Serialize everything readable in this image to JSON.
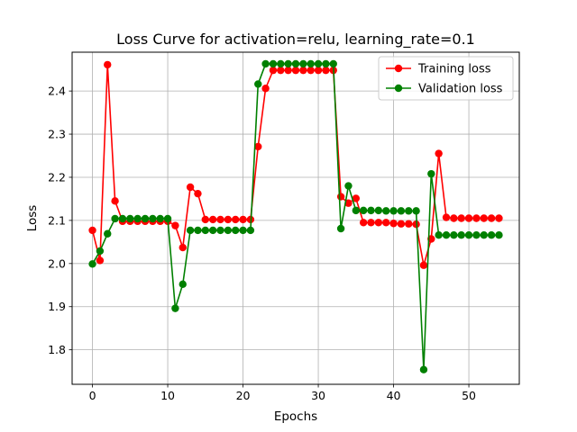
{
  "chart_data": {
    "type": "line",
    "title": "Loss Curve for activation=relu, learning_rate=0.1",
    "xlabel": "Epochs",
    "ylabel": "Loss",
    "xlim": [
      -2.7,
      56.7
    ],
    "ylim": [
      1.72,
      2.49
    ],
    "xticks": [
      0,
      10,
      20,
      30,
      40,
      50
    ],
    "yticks": [
      1.8,
      1.9,
      2.0,
      2.1,
      2.2,
      2.3,
      2.4
    ],
    "ytick_labels": [
      "1.8",
      "1.9",
      "2.0",
      "2.1",
      "2.2",
      "2.3",
      "2.4"
    ],
    "grid": true,
    "legend_position": "top-right",
    "series": [
      {
        "name": "Training loss",
        "color": "#ff0000",
        "x": [
          0,
          1,
          2,
          3,
          4,
          5,
          6,
          7,
          8,
          9,
          10,
          11,
          12,
          13,
          14,
          15,
          16,
          17,
          18,
          19,
          20,
          21,
          22,
          23,
          24,
          25,
          26,
          27,
          28,
          29,
          30,
          31,
          32,
          33,
          34,
          35,
          36,
          37,
          38,
          39,
          40,
          41,
          42,
          43,
          44,
          45,
          46,
          47,
          48,
          49,
          50,
          51,
          52,
          53,
          54
        ],
        "values": [
          2.077,
          2.007,
          2.461,
          2.145,
          2.098,
          2.098,
          2.098,
          2.098,
          2.098,
          2.098,
          2.098,
          2.088,
          2.037,
          2.177,
          2.162,
          2.102,
          2.102,
          2.102,
          2.102,
          2.102,
          2.102,
          2.102,
          2.271,
          2.406,
          2.448,
          2.448,
          2.448,
          2.448,
          2.448,
          2.448,
          2.448,
          2.448,
          2.448,
          2.155,
          2.14,
          2.151,
          2.095,
          2.095,
          2.095,
          2.095,
          2.093,
          2.092,
          2.092,
          2.091,
          1.996,
          2.057,
          2.255,
          2.107,
          2.105,
          2.105,
          2.105,
          2.105,
          2.105,
          2.105,
          2.105
        ]
      },
      {
        "name": "Validation loss",
        "color": "#008000",
        "x": [
          0,
          1,
          2,
          3,
          4,
          5,
          6,
          7,
          8,
          9,
          10,
          11,
          12,
          13,
          14,
          15,
          16,
          17,
          18,
          19,
          20,
          21,
          22,
          23,
          24,
          25,
          26,
          27,
          28,
          29,
          30,
          31,
          32,
          33,
          34,
          35,
          36,
          37,
          38,
          39,
          40,
          41,
          42,
          43,
          44,
          45,
          46,
          47,
          48,
          49,
          50,
          51,
          52,
          53,
          54
        ],
        "values": [
          1.999,
          2.029,
          2.069,
          2.104,
          2.104,
          2.104,
          2.104,
          2.104,
          2.104,
          2.104,
          2.104,
          1.896,
          1.952,
          2.077,
          2.077,
          2.077,
          2.077,
          2.077,
          2.077,
          2.077,
          2.077,
          2.077,
          2.416,
          2.463,
          2.463,
          2.463,
          2.463,
          2.463,
          2.463,
          2.463,
          2.463,
          2.463,
          2.463,
          2.081,
          2.18,
          2.123,
          2.123,
          2.123,
          2.123,
          2.122,
          2.122,
          2.122,
          2.122,
          2.122,
          1.754,
          2.208,
          2.066,
          2.066,
          2.066,
          2.066,
          2.066,
          2.066,
          2.066,
          2.066,
          2.066
        ]
      }
    ]
  }
}
